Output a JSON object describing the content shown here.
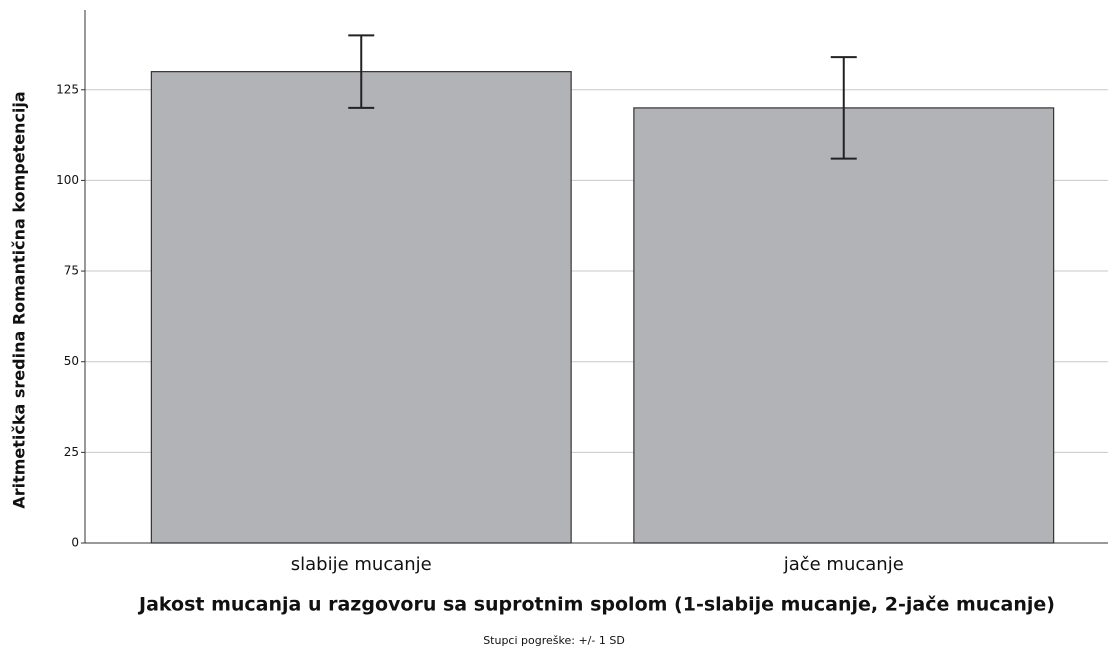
{
  "chart_data": {
    "type": "bar",
    "xlabel": "Jakost mucanja u razgovoru sa suprotnim spolom (1-slabije mucanje, 2-jače mucanje)",
    "ylabel": "Aritmetička sredina  Romantična kompetencija",
    "footnote": "Stupci pogreške: +/- 1 SD",
    "categories": [
      "slabije mucanje",
      "jače mucanje"
    ],
    "values": [
      130,
      120
    ],
    "errors": [
      10,
      14
    ],
    "color": "#b2b3b6",
    "ylim": [
      0,
      147
    ],
    "yticks": [
      0,
      25,
      50,
      75,
      100,
      125
    ],
    "grid": true
  }
}
